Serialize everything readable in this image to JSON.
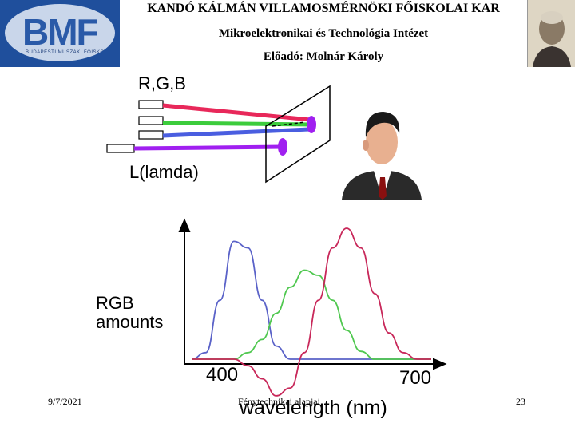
{
  "header": {
    "institution": "KANDÓ KÁLMÁN VILLAMOSMÉRNÖKI FŐISKOLAI KAR",
    "institute": "Mikroelektronikai és Technológia Intézet",
    "lecturer": "Előadó: Molnár Károly",
    "logo_text": "BMF",
    "logo_subtext": "BUDAPESTI MŰSZAKI FŐISKOLA"
  },
  "diagram": {
    "rgb_label": "R,G,B",
    "lamda_label": "L(lamda)",
    "beam_colors": {
      "red": "#e8285a",
      "green": "#3ccc3c",
      "blue": "#4a5ee0",
      "violet": "#a020f0"
    }
  },
  "chart_data": {
    "type": "line",
    "ylabel_line1": "RGB",
    "ylabel_line2": "amounts",
    "xlabel": "wavelength (nm)",
    "x_ticks": [
      "400",
      "700"
    ],
    "xlim": [
      380,
      720
    ],
    "ylim": [
      -0.4,
      1.0
    ],
    "x": [
      380,
      400,
      420,
      440,
      460,
      480,
      500,
      520,
      540,
      560,
      580,
      600,
      620,
      640,
      660,
      680,
      700,
      720
    ],
    "series": [
      {
        "color": "#5a62c8",
        "values": [
          0.0,
          0.05,
          0.45,
          0.9,
          0.85,
          0.45,
          0.1,
          0.0,
          0.0,
          0.0,
          0.0,
          0.0,
          0.0,
          0.0,
          0.0,
          0.0,
          0.0,
          0.0
        ]
      },
      {
        "color": "#50c850",
        "values": [
          0.0,
          0.0,
          0.0,
          0.0,
          0.05,
          0.15,
          0.35,
          0.55,
          0.68,
          0.64,
          0.45,
          0.22,
          0.06,
          0.0,
          0.0,
          0.0,
          0.0,
          0.0
        ]
      },
      {
        "color": "#c8285a",
        "values": [
          0.0,
          0.0,
          0.0,
          0.0,
          -0.05,
          -0.15,
          -0.28,
          -0.22,
          0.05,
          0.45,
          0.85,
          1.0,
          0.85,
          0.5,
          0.2,
          0.05,
          0.0,
          0.0
        ]
      }
    ]
  },
  "footer": {
    "date": "9/7/2021",
    "center": "Fénytechnikai alapjai",
    "page": "23"
  }
}
